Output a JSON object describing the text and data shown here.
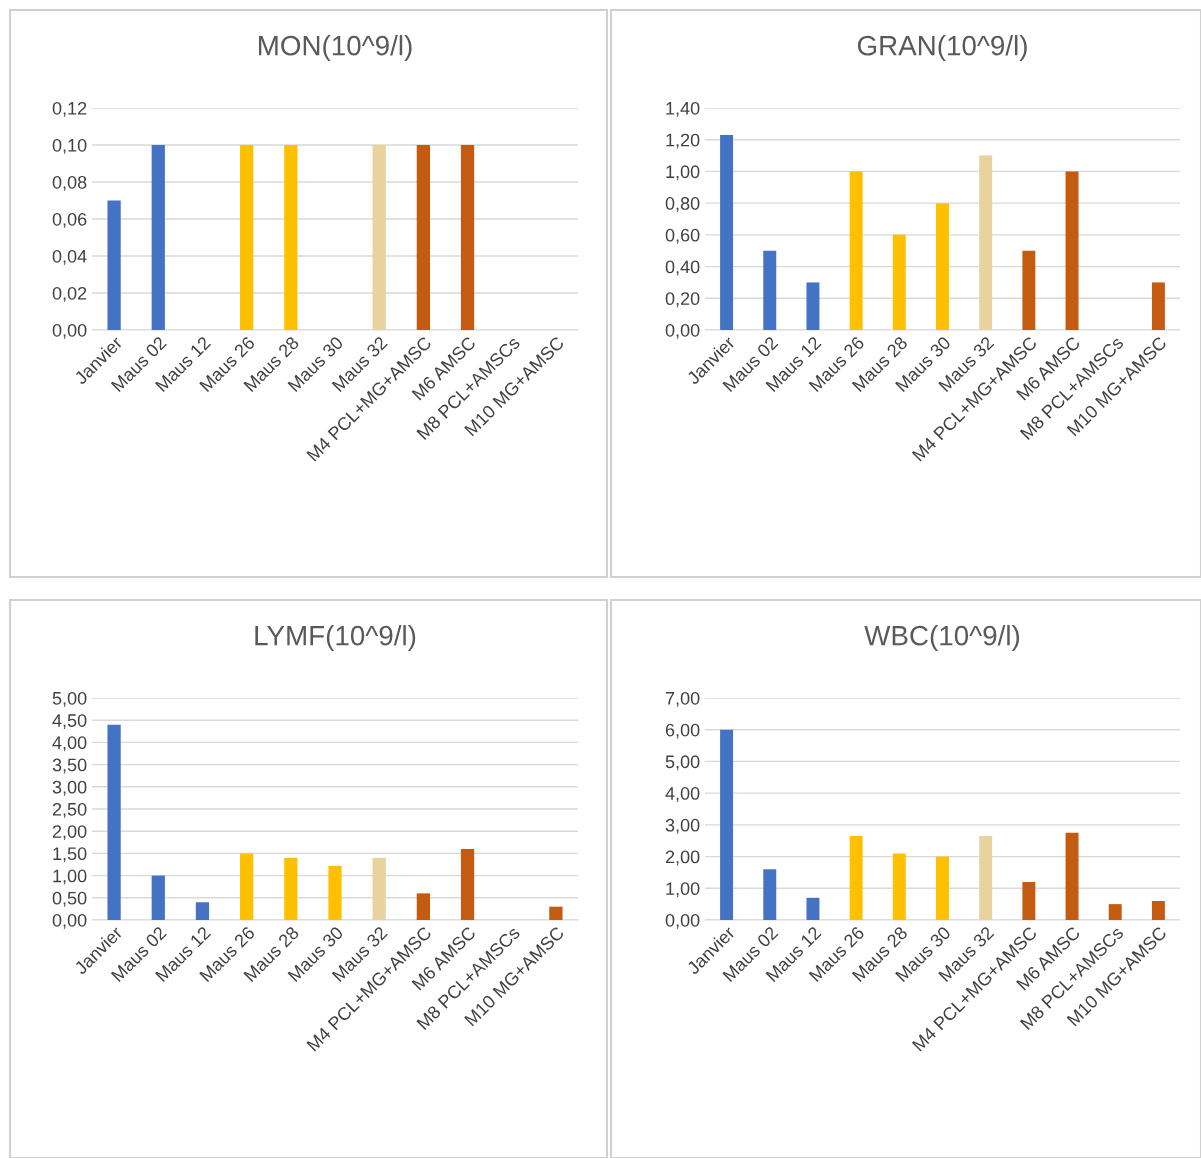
{
  "chart_data": [
    {
      "type": "bar",
      "title": "MON(10^9/l)",
      "categories": [
        "Janvier",
        "Maus 02",
        "Maus 12",
        "Maus 26",
        "Maus 28",
        "Maus 30",
        "Maus 32",
        "M4 PCL+MG+AMSC",
        "M6 AMSC",
        "M8 PCL+AMSCs",
        "M10 MG+AMSC"
      ],
      "values": [
        0.07,
        0.1,
        null,
        0.1,
        0.1,
        null,
        0.1,
        0.1,
        0.1,
        null,
        null
      ],
      "colors": [
        "#4472c4",
        "#4472c4",
        "#4472c4",
        "#ffc000",
        "#ffc000",
        "#ffc000",
        "#e8d29e",
        "#c55a11",
        "#c55a11",
        "#c55a11",
        "#c55a11"
      ],
      "ylim": [
        0,
        0.12
      ],
      "yticks": [
        {
          "value": 0,
          "label": "0,00"
        },
        {
          "value": 0.02,
          "label": "0,02"
        },
        {
          "value": 0.04,
          "label": "0,04"
        },
        {
          "value": 0.06,
          "label": "0,06"
        },
        {
          "value": 0.08,
          "label": "0,08"
        },
        {
          "value": 0.1,
          "label": "0,10"
        },
        {
          "value": 0.12,
          "label": "0,12"
        }
      ],
      "grid": "y",
      "legend": false
    },
    {
      "type": "bar",
      "title": "GRAN(10^9/l)",
      "categories": [
        "Janvier",
        "Maus 02",
        "Maus 12",
        "Maus 26",
        "Maus 28",
        "Maus 30",
        "Maus 32",
        "M4 PCL+MG+AMSC",
        "M6 AMSC",
        "M8 PCL+AMSCs",
        "M10 MG+AMSC"
      ],
      "values": [
        1.23,
        0.5,
        0.3,
        1.0,
        0.6,
        0.8,
        1.1,
        0.5,
        1.0,
        null,
        0.3
      ],
      "colors": [
        "#4472c4",
        "#4472c4",
        "#4472c4",
        "#ffc000",
        "#ffc000",
        "#ffc000",
        "#e8d29e",
        "#c55a11",
        "#c55a11",
        "#c55a11",
        "#c55a11"
      ],
      "ylim": [
        0,
        1.4
      ],
      "yticks": [
        {
          "value": 0,
          "label": "0,00"
        },
        {
          "value": 0.2,
          "label": "0,20"
        },
        {
          "value": 0.4,
          "label": "0,40"
        },
        {
          "value": 0.6,
          "label": "0,60"
        },
        {
          "value": 0.8,
          "label": "0,80"
        },
        {
          "value": 1.0,
          "label": "1,00"
        },
        {
          "value": 1.2,
          "label": "1,20"
        },
        {
          "value": 1.4,
          "label": "1,40"
        }
      ],
      "grid": "y",
      "legend": false
    },
    {
      "type": "bar",
      "title": "LYMF(10^9/l)",
      "categories": [
        "Janvier",
        "Maus 02",
        "Maus 12",
        "Maus 26",
        "Maus 28",
        "Maus 30",
        "Maus 32",
        "M4 PCL+MG+AMSC",
        "M6 AMSC",
        "M8 PCL+AMSCs",
        "M10 MG+AMSC"
      ],
      "values": [
        4.4,
        1.0,
        0.4,
        1.5,
        1.4,
        1.22,
        1.4,
        0.6,
        1.6,
        null,
        0.3
      ],
      "colors": [
        "#4472c4",
        "#4472c4",
        "#4472c4",
        "#ffc000",
        "#ffc000",
        "#ffc000",
        "#e8d29e",
        "#c55a11",
        "#c55a11",
        "#c55a11",
        "#c55a11"
      ],
      "ylim": [
        0,
        5
      ],
      "yticks": [
        {
          "value": 0,
          "label": "0,00"
        },
        {
          "value": 0.5,
          "label": "0,50"
        },
        {
          "value": 1.0,
          "label": "1,00"
        },
        {
          "value": 1.5,
          "label": "1,50"
        },
        {
          "value": 2.0,
          "label": "2,00"
        },
        {
          "value": 2.5,
          "label": "2,50"
        },
        {
          "value": 3.0,
          "label": "3,00"
        },
        {
          "value": 3.5,
          "label": "3,50"
        },
        {
          "value": 4.0,
          "label": "4,00"
        },
        {
          "value": 4.5,
          "label": "4,50"
        },
        {
          "value": 5.0,
          "label": "5,00"
        }
      ],
      "grid": "y",
      "legend": false
    },
    {
      "type": "bar",
      "title": "WBC(10^9/l)",
      "categories": [
        "Janvier",
        "Maus 02",
        "Maus 12",
        "Maus 26",
        "Maus 28",
        "Maus 30",
        "Maus 32",
        "M4 PCL+MG+AMSC",
        "M6 AMSC",
        "M8 PCL+AMSCs",
        "M10 MG+AMSC"
      ],
      "values": [
        6.0,
        1.6,
        0.7,
        2.65,
        2.1,
        2.0,
        2.65,
        1.2,
        2.75,
        0.5,
        0.6
      ],
      "colors": [
        "#4472c4",
        "#4472c4",
        "#4472c4",
        "#ffc000",
        "#ffc000",
        "#ffc000",
        "#e8d29e",
        "#c55a11",
        "#c55a11",
        "#c55a11",
        "#c55a11"
      ],
      "ylim": [
        0,
        7
      ],
      "yticks": [
        {
          "value": 0,
          "label": "0,00"
        },
        {
          "value": 1,
          "label": "1,00"
        },
        {
          "value": 2,
          "label": "2,00"
        },
        {
          "value": 3,
          "label": "3,00"
        },
        {
          "value": 4,
          "label": "4,00"
        },
        {
          "value": 5,
          "label": "5,00"
        },
        {
          "value": 6,
          "label": "6,00"
        },
        {
          "value": 7,
          "label": "7,00"
        }
      ],
      "grid": "y",
      "legend": false
    }
  ]
}
